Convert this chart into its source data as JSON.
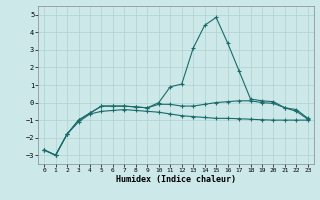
{
  "xlabel": "Humidex (Indice chaleur)",
  "xlim": [
    -0.5,
    23.5
  ],
  "ylim": [
    -3.5,
    5.5
  ],
  "yticks": [
    -3,
    -2,
    -1,
    0,
    1,
    2,
    3,
    4,
    5
  ],
  "xticks": [
    0,
    1,
    2,
    3,
    4,
    5,
    6,
    7,
    8,
    9,
    10,
    11,
    12,
    13,
    14,
    15,
    16,
    17,
    18,
    19,
    20,
    21,
    22,
    23
  ],
  "background_color": "#cce8e8",
  "grid_color": "#b0d0d0",
  "line_color": "#1a6b6b",
  "curve1_x": [
    0,
    1,
    2,
    3,
    4,
    5,
    6,
    7,
    8,
    9,
    10,
    11,
    12,
    13,
    14,
    15,
    16,
    17,
    18,
    19,
    20,
    21,
    22,
    23
  ],
  "curve1_y": [
    -2.7,
    -3.0,
    -1.8,
    -1.1,
    -0.65,
    -0.5,
    -0.45,
    -0.4,
    -0.45,
    -0.5,
    -0.55,
    -0.65,
    -0.75,
    -0.8,
    -0.85,
    -0.9,
    -0.9,
    -0.92,
    -0.95,
    -0.98,
    -1.0,
    -1.0,
    -1.0,
    -1.0
  ],
  "curve2_x": [
    0,
    1,
    2,
    3,
    4,
    5,
    6,
    7,
    8,
    9,
    10,
    11,
    12,
    13,
    14,
    15,
    16,
    17,
    18,
    19,
    20,
    21,
    22,
    23
  ],
  "curve2_y": [
    -2.7,
    -3.0,
    -1.8,
    -1.0,
    -0.6,
    -0.2,
    -0.2,
    -0.2,
    -0.25,
    -0.3,
    -0.1,
    -0.1,
    -0.2,
    -0.2,
    -0.1,
    0.0,
    0.05,
    0.1,
    0.1,
    0.0,
    -0.05,
    -0.3,
    -0.4,
    -0.9
  ],
  "curve3_x": [
    0,
    1,
    2,
    3,
    4,
    5,
    6,
    7,
    8,
    9,
    10,
    11,
    12,
    13,
    14,
    15,
    16,
    17,
    18,
    19,
    20,
    21,
    22,
    23
  ],
  "curve3_y": [
    -2.7,
    -3.0,
    -1.8,
    -1.0,
    -0.6,
    -0.2,
    -0.2,
    -0.2,
    -0.25,
    -0.3,
    0.0,
    0.9,
    1.05,
    3.1,
    4.4,
    4.85,
    3.4,
    1.8,
    0.2,
    0.1,
    0.05,
    -0.3,
    -0.5,
    -0.95
  ]
}
